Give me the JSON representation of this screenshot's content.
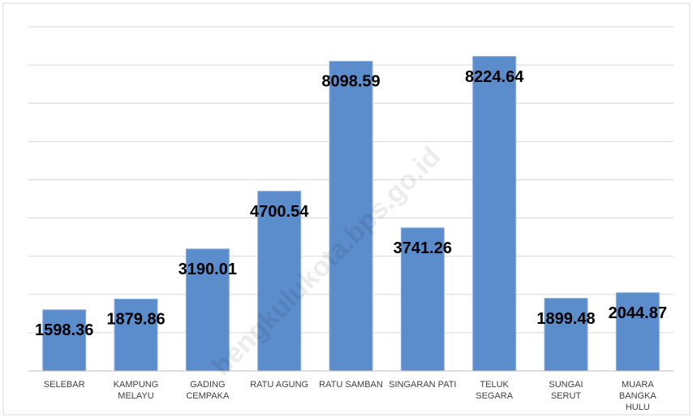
{
  "chart_data": {
    "type": "bar",
    "categories": [
      "SELEBAR",
      "KAMPUNG MELAYU",
      "GADING CEMPAKA",
      "RATU AGUNG",
      "RATU SAMBAN",
      "SINGARAN PATI",
      "TELUK SEGARA",
      "SUNGAI SERUT",
      "MUARA BANGKA HULU"
    ],
    "values": [
      1598.36,
      1879.86,
      3190.01,
      4700.54,
      8098.59,
      3741.26,
      8224.64,
      1899.48,
      2044.87
    ],
    "color": "#5b8ccb",
    "ylim": [
      0,
      9000
    ],
    "yticks": [
      0,
      1000,
      2000,
      3000,
      4000,
      5000,
      6000,
      7000,
      8000,
      9000
    ],
    "grid": true,
    "watermark": "bengkulukota.bps.go.id"
  }
}
